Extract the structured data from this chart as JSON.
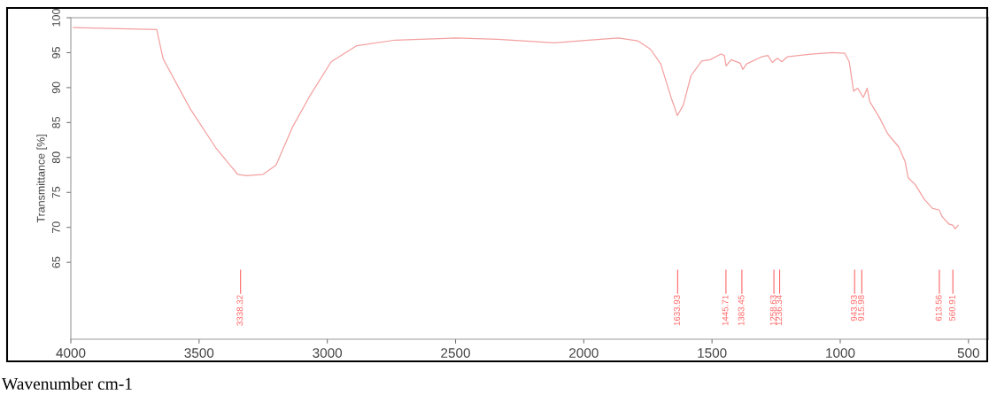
{
  "chart_data": {
    "type": "line",
    "ylabel": "Transmittance [%]",
    "xlabel": "Wavenumber cm-1",
    "xlim": [
      4000,
      420
    ],
    "ylim": [
      54,
      100
    ],
    "xticks": [
      4000,
      3500,
      3000,
      2500,
      2000,
      1500,
      1000,
      500
    ],
    "yticks": [
      65,
      70,
      75,
      80,
      85,
      90,
      95,
      100
    ],
    "grid": false,
    "legend": false,
    "marker": "none",
    "line_style": "solid",
    "series": [
      {
        "color": "#f4a0a0",
        "x": [
          3990,
          3665,
          3640,
          3535,
          3435,
          3350,
          3315,
          3250,
          3200,
          3135,
          3065,
          2985,
          2885,
          2735,
          2500,
          2335,
          2115,
          1982,
          1865,
          1790,
          1740,
          1700,
          1657,
          1635,
          1612,
          1582,
          1540,
          1507,
          1465,
          1452,
          1445,
          1425,
          1390,
          1380,
          1365,
          1307,
          1282,
          1265,
          1245,
          1228,
          1207,
          1115,
          1032,
          982,
          965,
          948,
          932,
          910,
          895,
          885,
          847,
          815,
          772,
          747,
          735,
          707,
          672,
          640,
          615,
          602,
          577,
          560,
          552,
          540
        ],
        "values": [
          98.6,
          98.3,
          94.1,
          87.0,
          81.4,
          77.6,
          77.4,
          77.6,
          78.9,
          84.4,
          89.0,
          93.7,
          96.0,
          96.8,
          97.1,
          96.9,
          96.4,
          96.8,
          97.1,
          96.7,
          95.5,
          93.4,
          88.3,
          86.0,
          87.5,
          91.7,
          93.8,
          94.0,
          94.8,
          94.6,
          93.1,
          94.0,
          93.5,
          92.6,
          93.4,
          94.4,
          94.6,
          93.6,
          94.2,
          93.7,
          94.4,
          94.8,
          95.0,
          94.9,
          93.7,
          89.5,
          89.9,
          88.6,
          89.9,
          88.0,
          85.7,
          83.4,
          81.5,
          79.4,
          77.1,
          76.1,
          74.0,
          72.7,
          72.5,
          71.5,
          70.5,
          70.3,
          69.8,
          70.3
        ]
      }
    ],
    "ref_lines": [
      {
        "axis": "x",
        "value": 3338.32,
        "label": "3338.32",
        "color": "#ff6666"
      },
      {
        "axis": "x",
        "value": 1633.93,
        "label": "1633.93",
        "color": "#ff6666"
      },
      {
        "axis": "x",
        "value": 1445.71,
        "label": "1445.71",
        "color": "#ff6666"
      },
      {
        "axis": "x",
        "value": 1383.45,
        "label": "1383.45",
        "color": "#ff6666"
      },
      {
        "axis": "x",
        "value": 1258.63,
        "label": "1258.63",
        "color": "#ff6666"
      },
      {
        "axis": "x",
        "value": 1236.34,
        "label": "1236.34",
        "color": "#ff6666"
      },
      {
        "axis": "x",
        "value": 943.93,
        "label": "943.93",
        "color": "#ff6666"
      },
      {
        "axis": "x",
        "value": 915.98,
        "label": "915.98",
        "color": "#ff6666"
      },
      {
        "axis": "x",
        "value": 613.56,
        "label": "613.56",
        "color": "#ff6666"
      },
      {
        "axis": "x",
        "value": 560.91,
        "label": "560.91",
        "color": "#ff6666"
      }
    ]
  }
}
